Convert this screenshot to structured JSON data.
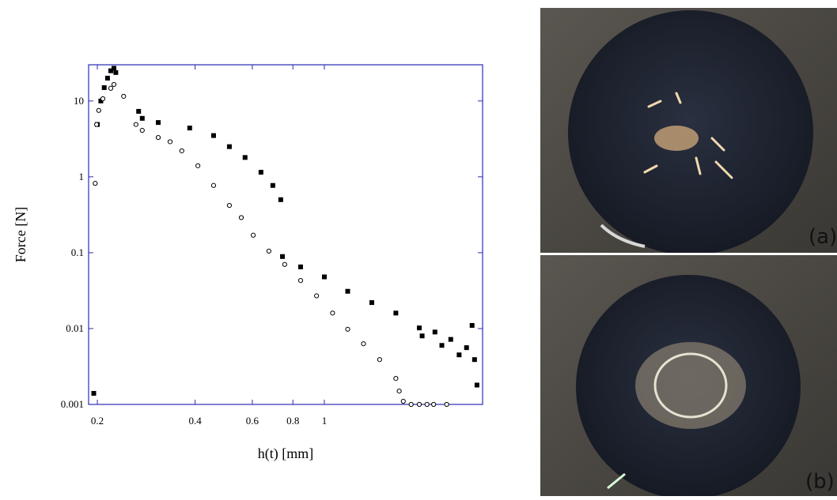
{
  "chart_data": {
    "type": "scatter",
    "xlabel": "h(t) [mm]",
    "ylabel": "Force [N]",
    "xscale": "log",
    "yscale": "log",
    "xlim": [
      0.188,
      3.07
    ],
    "ylim": [
      0.001,
      30
    ],
    "xticks": [
      0.2,
      0.4,
      0.6,
      0.8,
      1
    ],
    "yticks": [
      0.001,
      0.01,
      0.1,
      1,
      10
    ],
    "frame_color": "#2a2ab8",
    "series": [
      {
        "color": "#000000",
        "marker": "square",
        "x": [
          0.195,
          0.2,
          0.205,
          0.21,
          0.215,
          0.22,
          0.225,
          0.228,
          0.268,
          0.275,
          0.308,
          0.385,
          0.456,
          0.51,
          0.57,
          0.638,
          0.694,
          0.734,
          0.743,
          0.845,
          1.0,
          1.18,
          1.4,
          1.66,
          1.96,
          2.19,
          2.45,
          2.74,
          2.9,
          2.85,
          2.6,
          2.95,
          2.3,
          2.0
        ],
        "values": [
          0.0014,
          4.9,
          10,
          15,
          20,
          25,
          27,
          23.7,
          7.3,
          5.9,
          5.2,
          4.4,
          3.5,
          2.5,
          1.8,
          1.15,
          0.77,
          0.5,
          0.089,
          0.065,
          0.048,
          0.031,
          0.022,
          0.016,
          0.0102,
          0.009,
          0.0072,
          0.0056,
          0.0039,
          0.011,
          0.0045,
          0.0018,
          0.006,
          0.008
        ]
      },
      {
        "color": "#000000",
        "marker": "circle-open",
        "x": [
          0.197,
          0.199,
          0.202,
          0.208,
          0.22,
          0.225,
          0.241,
          0.263,
          0.275,
          0.308,
          0.335,
          0.364,
          0.408,
          0.456,
          0.51,
          0.555,
          0.604,
          0.675,
          0.755,
          0.845,
          0.946,
          1.06,
          1.18,
          1.32,
          1.48,
          1.66,
          1.7,
          1.75,
          1.85,
          1.96,
          2.07,
          2.17,
          2.38
        ],
        "values": [
          0.82,
          4.9,
          7.5,
          10.7,
          14.7,
          16.5,
          11.5,
          4.9,
          4.1,
          3.3,
          2.9,
          2.2,
          1.4,
          0.77,
          0.42,
          0.29,
          0.17,
          0.105,
          0.07,
          0.043,
          0.027,
          0.016,
          0.0098,
          0.0063,
          0.0039,
          0.0022,
          0.0015,
          0.0011,
          0.001,
          0.001,
          0.001,
          0.001,
          0.001
        ]
      }
    ]
  },
  "images": [
    {
      "label": "(a)"
    },
    {
      "label": "(b)"
    }
  ]
}
